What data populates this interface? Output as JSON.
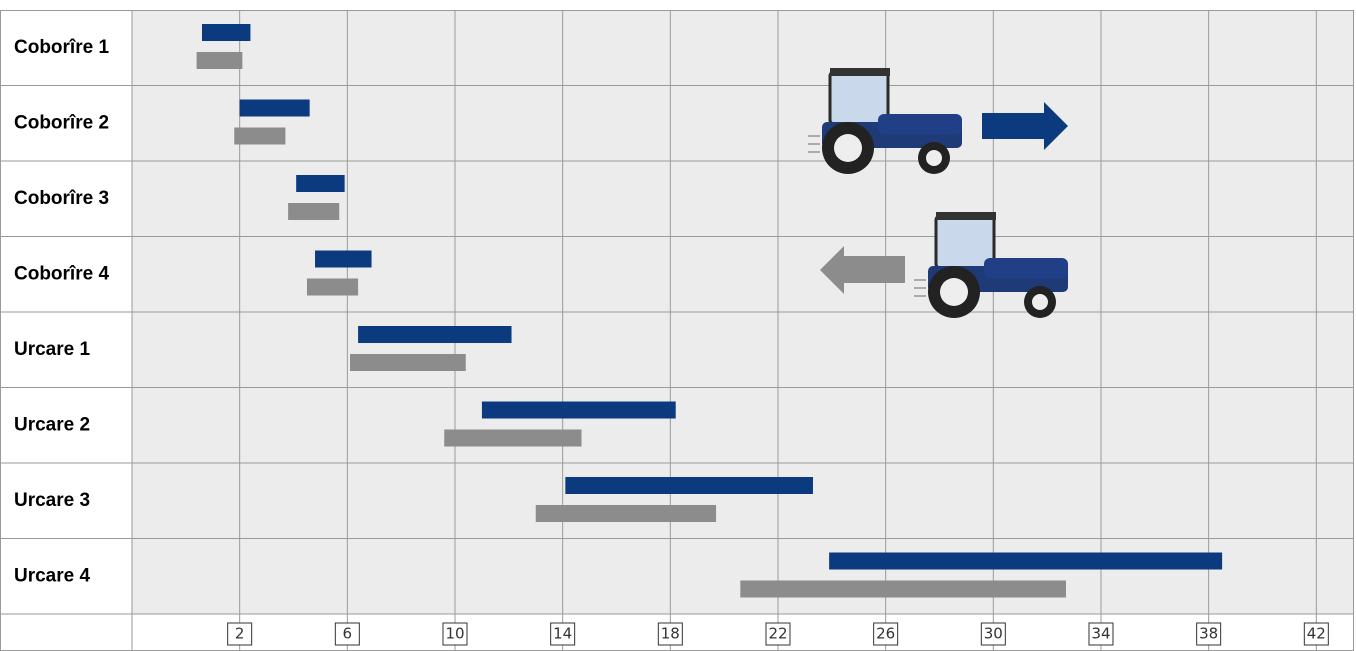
{
  "chart_data": {
    "type": "range-bar",
    "categories": [
      "Coborîre 1",
      "Coborîre 2",
      "Coborîre 3",
      "Coborîre 4",
      "Urcare 1",
      "Urcare 2",
      "Urcare 3",
      "Urcare 4"
    ],
    "series": [
      {
        "color": "#0b3a7e",
        "values": [
          [
            0.6,
            2.4
          ],
          [
            2.0,
            4.6
          ],
          [
            4.1,
            5.9
          ],
          [
            4.8,
            6.9
          ],
          [
            6.4,
            12.1
          ],
          [
            11.0,
            18.2
          ],
          [
            14.1,
            23.3
          ],
          [
            23.9,
            38.5
          ]
        ]
      },
      {
        "color": "#8c8c8c",
        "values": [
          [
            0.4,
            2.1
          ],
          [
            1.8,
            3.7
          ],
          [
            3.8,
            5.7
          ],
          [
            4.5,
            6.4
          ],
          [
            6.1,
            10.4
          ],
          [
            9.6,
            14.7
          ],
          [
            13.0,
            19.7
          ],
          [
            20.6,
            32.7
          ]
        ]
      }
    ],
    "xlim": [
      -2,
      43.4
    ],
    "xticks": [
      2,
      6,
      10,
      14,
      18,
      22,
      26,
      30,
      34,
      38,
      42
    ],
    "grid": true
  }
}
